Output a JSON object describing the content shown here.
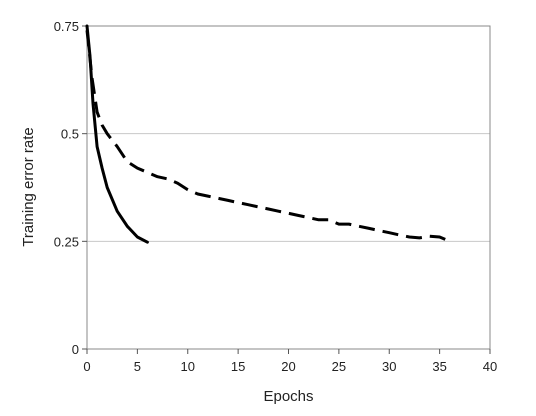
{
  "chart_data": {
    "type": "line",
    "title": "",
    "xlabel": "Epochs",
    "ylabel": "Training error rate",
    "xlim": [
      0,
      40
    ],
    "ylim": [
      0,
      0.75
    ],
    "x_ticks": [
      0,
      5,
      10,
      15,
      20,
      25,
      30,
      35,
      40
    ],
    "x_tick_labels": [
      "0",
      "5",
      "10",
      "15",
      "20",
      "25",
      "30",
      "35",
      "40"
    ],
    "y_ticks": [
      0,
      0.25,
      0.5,
      0.75
    ],
    "y_tick_labels": [
      "0",
      "0.25",
      "0.5",
      "0.75"
    ],
    "grid": "horizontal",
    "legend": "none",
    "series": [
      {
        "style": "solid",
        "color": "#000000",
        "x": [
          0,
          0.3,
          0.6,
          1,
          1.5,
          2,
          3,
          4,
          5,
          6
        ],
        "y": [
          0.75,
          0.68,
          0.57,
          0.47,
          0.42,
          0.375,
          0.32,
          0.285,
          0.26,
          0.248
        ]
      },
      {
        "style": "dashed",
        "color": "#000000",
        "x": [
          0,
          0.5,
          1,
          1.5,
          2,
          3,
          4,
          5,
          6,
          7,
          8,
          9,
          10,
          11,
          12,
          13,
          14,
          15,
          16,
          17,
          18,
          19,
          20,
          21,
          22,
          23,
          24,
          25,
          26,
          27,
          28,
          29,
          30,
          31,
          32,
          33,
          34,
          35,
          36
        ],
        "y": [
          0.74,
          0.63,
          0.55,
          0.52,
          0.5,
          0.47,
          0.435,
          0.42,
          0.41,
          0.4,
          0.395,
          0.385,
          0.37,
          0.36,
          0.355,
          0.35,
          0.345,
          0.34,
          0.335,
          0.33,
          0.325,
          0.32,
          0.315,
          0.31,
          0.305,
          0.3,
          0.3,
          0.29,
          0.29,
          0.285,
          0.28,
          0.275,
          0.27,
          0.265,
          0.26,
          0.258,
          0.262,
          0.26,
          0.25
        ]
      }
    ]
  }
}
